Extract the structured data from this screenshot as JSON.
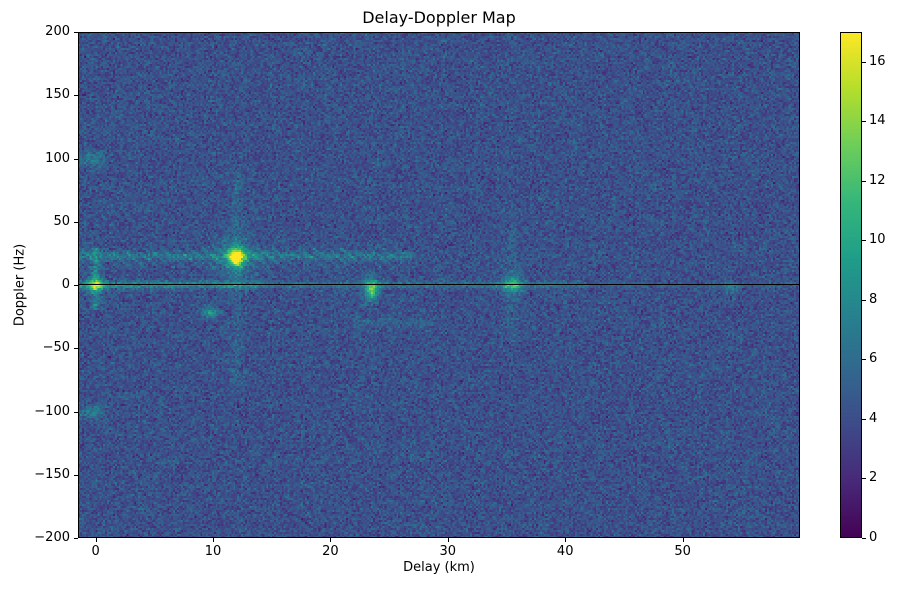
{
  "chart_data": {
    "type": "heatmap",
    "title": "Delay-Doppler Map",
    "xlabel": "Delay (km)",
    "ylabel": "Doppler (Hz)",
    "x_range": [
      -1.5,
      60
    ],
    "y_range": [
      -200,
      200
    ],
    "x_ticks": [
      0,
      10,
      20,
      30,
      40,
      50
    ],
    "y_ticks": [
      -200,
      -150,
      -100,
      -50,
      0,
      50,
      100,
      150,
      200
    ],
    "colormap": "viridis",
    "grid": false,
    "colorbar": {
      "position": "right",
      "vmin": 0,
      "vmax": 17,
      "ticks": [
        0,
        2,
        4,
        6,
        8,
        10,
        12,
        14,
        16
      ]
    },
    "background_noise": {
      "mean": 4.2,
      "std": 1.0
    },
    "zero_doppler_line": {
      "doppler_hz": 0,
      "color": "#000000"
    },
    "features": [
      {
        "type": "blob",
        "name": "direct-path-peak",
        "delay_km": 12.0,
        "doppler_hz": 22,
        "amp": 12.0,
        "sigma_km": 0.45,
        "sigma_hz": 4.5
      },
      {
        "type": "blob",
        "name": "direct-path-halo",
        "delay_km": 12.0,
        "doppler_hz": 22,
        "amp": 3.0,
        "sigma_km": 1.3,
        "sigma_hz": 11
      },
      {
        "type": "vband",
        "name": "direct-path-vertical-streak",
        "delay_km": 12.0,
        "sigma_km": 0.35,
        "doppler_min": -80,
        "doppler_max": 90,
        "amp": 1.6,
        "patchiness": 0.7
      },
      {
        "type": "hband",
        "name": "clutter-ridge-band",
        "delay_min": -1.5,
        "delay_max": 27,
        "doppler_hz": 23,
        "sigma_hz": 2.2,
        "amp": 3.2,
        "patchiness": 0.7
      },
      {
        "type": "stripes",
        "name": "interference-herringbone",
        "delay_min": -1.5,
        "delay_max": 27,
        "doppler_min": 13,
        "doppler_max": 30,
        "amp": 2.6,
        "stripe_per_km": 0.85,
        "stripe_per_hz": 0.12,
        "patchiness": 0.75
      },
      {
        "type": "hband",
        "name": "zero-doppler-ridge",
        "delay_min": -1.5,
        "delay_max": 42,
        "doppler_hz": 0,
        "sigma_hz": 1.8,
        "amp": 3.5,
        "patchiness": 0.6
      },
      {
        "type": "hband",
        "name": "zero-doppler-ridge-left",
        "delay_min": -1.5,
        "delay_max": 14,
        "doppler_hz": 0,
        "sigma_hz": 2.6,
        "amp": 2.5,
        "patchiness": 0.7
      },
      {
        "type": "hband",
        "name": "zero-doppler-ridge-far",
        "delay_min": 42,
        "delay_max": 60,
        "doppler_hz": 0,
        "sigma_hz": 1.4,
        "amp": 1.2,
        "patchiness": 0.6
      },
      {
        "type": "vband",
        "name": "zero-delay-streak",
        "delay_km": 0.0,
        "sigma_km": 0.3,
        "doppler_min": -20,
        "doppler_max": 30,
        "amp": 4.0,
        "patchiness": 0.55
      },
      {
        "type": "blob",
        "name": "zero-zero-spot",
        "delay_km": 0.0,
        "doppler_hz": 0,
        "amp": 6.0,
        "sigma_km": 0.5,
        "sigma_hz": 4
      },
      {
        "type": "blob",
        "name": "spot-10km-minus22hz",
        "delay_km": 9.8,
        "doppler_hz": -22,
        "amp": 4.5,
        "sigma_km": 0.5,
        "sigma_hz": 3
      },
      {
        "type": "blob",
        "name": "spot-23km",
        "delay_km": 23.5,
        "doppler_hz": -4,
        "amp": 6.5,
        "sigma_km": 0.45,
        "sigma_hz": 5
      },
      {
        "type": "vband",
        "name": "streak-23km",
        "delay_km": 23.5,
        "sigma_km": 0.3,
        "doppler_min": -14,
        "doppler_max": 10,
        "amp": 2.5,
        "patchiness": 0.5
      },
      {
        "type": "hband",
        "name": "sidelobe-band-minus30hz",
        "delay_min": 22,
        "delay_max": 29,
        "doppler_hz": -30,
        "sigma_hz": 3,
        "amp": 1.6,
        "patchiness": 0.8
      },
      {
        "type": "blob",
        "name": "spot-35km",
        "delay_km": 35.5,
        "doppler_hz": 0,
        "amp": 5.0,
        "sigma_km": 0.6,
        "sigma_hz": 5
      },
      {
        "type": "vband",
        "name": "streak-35km",
        "delay_km": 35.5,
        "sigma_km": 0.45,
        "doppler_min": -45,
        "doppler_max": 45,
        "amp": 1.4,
        "patchiness": 0.7
      },
      {
        "type": "blob",
        "name": "spot-plus100hz",
        "delay_km": -0.3,
        "doppler_hz": 100,
        "amp": 3.2,
        "sigma_km": 0.7,
        "sigma_hz": 4
      },
      {
        "type": "blob",
        "name": "spot-minus100hz",
        "delay_km": -0.3,
        "doppler_hz": -100,
        "amp": 2.8,
        "sigma_km": 0.7,
        "sigma_hz": 4
      },
      {
        "type": "blob",
        "name": "spot-54km",
        "delay_km": 54.0,
        "doppler_hz": -2,
        "amp": 3.0,
        "sigma_km": 0.5,
        "sigma_hz": 3
      }
    ]
  }
}
